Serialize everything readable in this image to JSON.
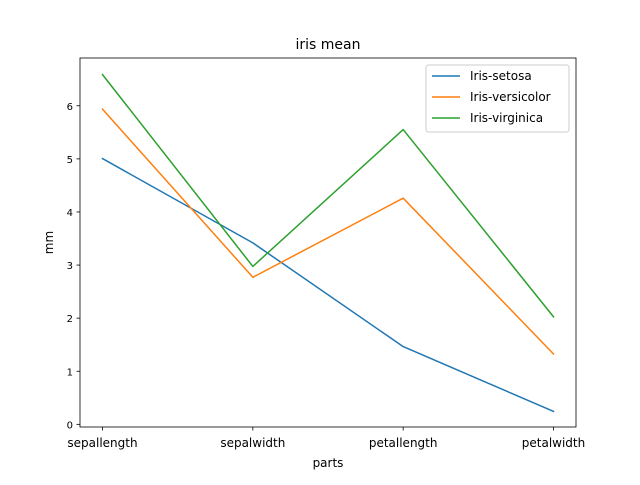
{
  "chart_data": {
    "type": "line",
    "title": "iris mean",
    "xlabel": "parts",
    "ylabel": "mm",
    "categories": [
      "sepallength",
      "sepalwidth",
      "petallength",
      "petalwidth"
    ],
    "ylim": [
      -0.05,
      6.9
    ],
    "yticks": [
      0,
      1,
      2,
      3,
      4,
      5,
      6
    ],
    "grid": false,
    "legend_position": "upper right",
    "series": [
      {
        "name": "Iris-setosa",
        "color": "#1f77b4",
        "values": [
          5.006,
          3.418,
          1.464,
          0.244
        ]
      },
      {
        "name": "Iris-versicolor",
        "color": "#ff7f0e",
        "values": [
          5.936,
          2.77,
          4.26,
          1.326
        ]
      },
      {
        "name": "Iris-virginica",
        "color": "#2ca02c",
        "values": [
          6.588,
          2.974,
          5.552,
          2.026
        ]
      }
    ]
  }
}
